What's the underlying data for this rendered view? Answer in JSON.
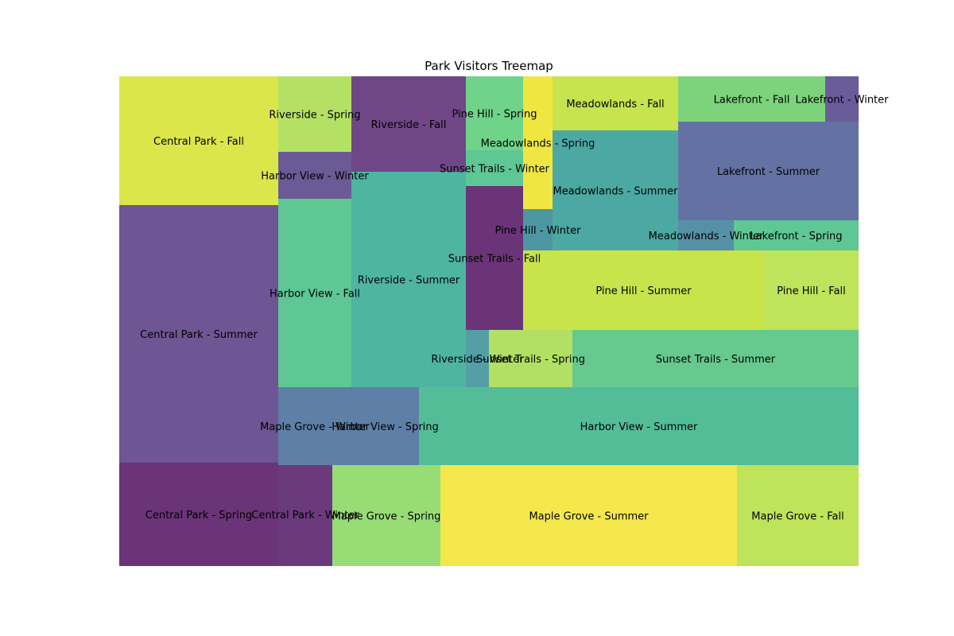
{
  "chart_data": {
    "type": "treemap",
    "title": "Park Visitors Treemap",
    "axes_visible": false,
    "tiles": [
      {
        "label": "Central Park - Fall",
        "color": "#dbe64a"
      },
      {
        "label": "Central Park - Summer",
        "color": "#6e5593"
      },
      {
        "label": "Central Park - Spring",
        "color": "#6b3478"
      },
      {
        "label": "Central Park - Winter",
        "color": "#6b3a7d"
      },
      {
        "label": "Riverside - Spring",
        "color": "#b4e163"
      },
      {
        "label": "Harbor View - Winter",
        "color": "#6b5a96"
      },
      {
        "label": "Riverside - Fall",
        "color": "#6f4787"
      },
      {
        "label": "Harbor View - Fall",
        "color": "#5ec794"
      },
      {
        "label": "Riverside - Summer",
        "color": "#4eb5a1"
      },
      {
        "label": "Pine Hill - Spring",
        "color": "#6fd38a"
      },
      {
        "label": "Meadowlands - Spring",
        "color": "#efe642"
      },
      {
        "label": "Sunset Trails - Winter",
        "color": "#5ec794"
      },
      {
        "label": "Meadowlands - Fall",
        "color": "#c8e34e"
      },
      {
        "label": "Meadowlands - Summer",
        "color": "#4ca8a3"
      },
      {
        "label": "Lakefront - Fall",
        "color": "#7dd37c"
      },
      {
        "label": "Lakefront - Winter",
        "color": "#6a5b9a"
      },
      {
        "label": "Lakefront - Summer",
        "color": "#6372a3"
      },
      {
        "label": "Sunset Trails - Fall",
        "color": "#6b3478"
      },
      {
        "label": "Pine Hill - Winter",
        "color": "#4d97a3"
      },
      {
        "label": "Meadowlands - Winter",
        "color": "#5690a5"
      },
      {
        "label": "Lakefront - Spring",
        "color": "#5ec794"
      },
      {
        "label": "Pine Hill - Summer",
        "color": "#c9e34b"
      },
      {
        "label": "Pine Hill - Fall",
        "color": "#bde45a"
      },
      {
        "label": "Riverside - Winter",
        "color": "#549fa6"
      },
      {
        "label": "Sunset Trails - Spring",
        "color": "#b1e065"
      },
      {
        "label": "Sunset Trails - Summer",
        "color": "#66c98d"
      },
      {
        "label": "Maple Grove - Winter",
        "color": "#5e7fa6"
      },
      {
        "label": "Harbor View - Spring",
        "color": "#5e7fa6"
      },
      {
        "label": "Harbor View - Summer",
        "color": "#53bd98"
      },
      {
        "label": "Maple Grove - Spring",
        "color": "#98dc76"
      },
      {
        "label": "Maple Grove - Summer",
        "color": "#f5e84d"
      },
      {
        "label": "Maple Grove - Fall",
        "color": "#bde45a"
      }
    ]
  }
}
